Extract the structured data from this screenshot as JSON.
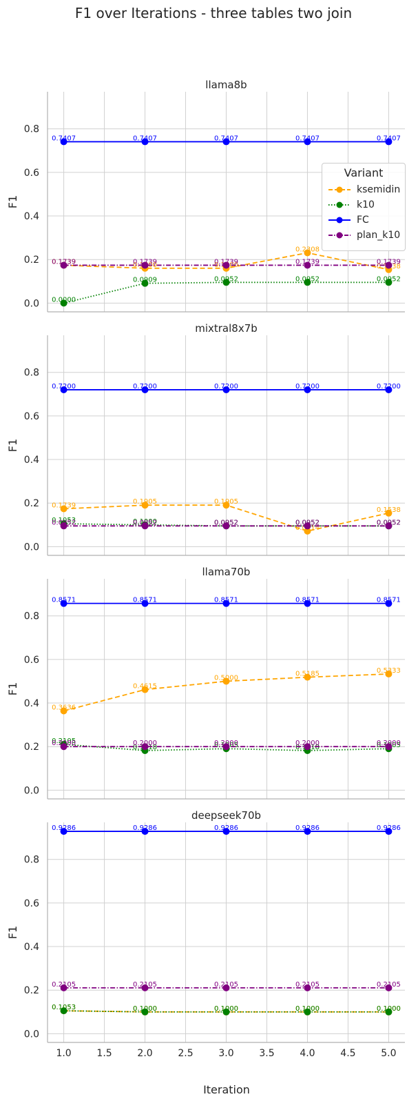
{
  "chart_data": {
    "type": "line",
    "title": "F1 over Iterations - three tables two join",
    "xlabel": "Iteration",
    "ylabel": "F1",
    "xlim": [
      0.8,
      5.2
    ],
    "ylim": [
      -0.04,
      0.97
    ],
    "x_ticks": [
      "1.0",
      "1.5",
      "2.0",
      "2.5",
      "3.0",
      "3.5",
      "4.0",
      "4.5",
      "5.0"
    ],
    "y_ticks": [
      "0.0",
      "0.2",
      "0.4",
      "0.6",
      "0.8"
    ],
    "grid": true,
    "legend": {
      "title": "Variant",
      "placement": "right, upper panel",
      "items": [
        "ksemidin",
        "k10",
        "FC",
        "plan_k10"
      ]
    },
    "series_style": {
      "ksemidin": {
        "color": "#ffa500",
        "dash": "dashed"
      },
      "k10": {
        "color": "#008000",
        "dash": "dotted"
      },
      "FC": {
        "color": "#0000ff",
        "dash": "solid"
      },
      "plan_k10": {
        "color": "#800080",
        "dash": "dashdot"
      }
    },
    "x": [
      1,
      2,
      3,
      4,
      5
    ],
    "panels": [
      {
        "title": "llama8b",
        "series": [
          {
            "name": "ksemidin",
            "values": [
              0.1739,
              0.16,
              0.16,
              0.2308,
              0.1538
            ]
          },
          {
            "name": "k10",
            "values": [
              0.0,
              0.0909,
              0.0952,
              0.0952,
              0.0952
            ]
          },
          {
            "name": "FC",
            "values": [
              0.7407,
              0.7407,
              0.7407,
              0.7407,
              0.7407
            ]
          },
          {
            "name": "plan_k10",
            "values": [
              0.1739,
              0.1739,
              0.1739,
              0.1739,
              0.1739
            ]
          }
        ]
      },
      {
        "title": "mixtral8x7b",
        "series": [
          {
            "name": "ksemidin",
            "values": [
              0.1739,
              0.1905,
              0.1905,
              0.0714,
              0.1538
            ]
          },
          {
            "name": "k10",
            "values": [
              0.1053,
              0.1,
              0.0952,
              0.0952,
              0.0952
            ]
          },
          {
            "name": "FC",
            "values": [
              0.72,
              0.72,
              0.72,
              0.72,
              0.72
            ]
          },
          {
            "name": "plan_k10",
            "values": [
              0.0952,
              0.0952,
              0.0952,
              0.0952,
              0.0952
            ]
          }
        ]
      },
      {
        "title": "llama70b",
        "series": [
          {
            "name": "ksemidin",
            "values": [
              0.3636,
              0.4615,
              0.5,
              0.5185,
              0.5333
            ]
          },
          {
            "name": "k10",
            "values": [
              0.2105,
              0.1818,
              0.1905,
              0.1818,
              0.1905
            ]
          },
          {
            "name": "FC",
            "values": [
              0.8571,
              0.8571,
              0.8571,
              0.8571,
              0.8571
            ]
          },
          {
            "name": "plan_k10",
            "values": [
              0.2,
              0.2,
              0.2,
              0.2,
              0.2
            ]
          }
        ]
      },
      {
        "title": "deepseek70b",
        "series": [
          {
            "name": "ksemidin",
            "values": [
              0.1053,
              0.1,
              0.1,
              0.1,
              0.1
            ]
          },
          {
            "name": "k10",
            "values": [
              0.1053,
              0.1,
              0.1,
              0.1,
              0.1
            ]
          },
          {
            "name": "FC",
            "values": [
              0.9286,
              0.9286,
              0.9286,
              0.9286,
              0.9286
            ]
          },
          {
            "name": "plan_k10",
            "values": [
              0.2105,
              0.2105,
              0.2105,
              0.2105,
              0.2105
            ]
          }
        ]
      }
    ]
  }
}
